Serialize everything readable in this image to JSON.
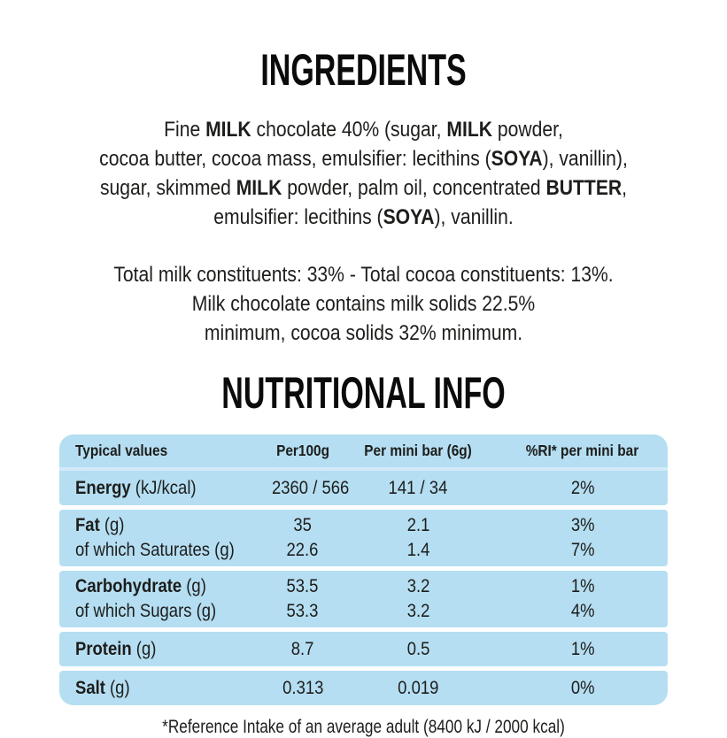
{
  "colors": {
    "table_blue": "#b5def2",
    "text": "#1d1d1b",
    "background": "#ffffff"
  },
  "ingredients": {
    "title": "INGREDIENTS",
    "paragraph1": [
      [
        {
          "text": "Fine "
        },
        {
          "text": "MILK",
          "bold": true
        },
        {
          "text": " chocolate 40% (sugar, "
        },
        {
          "text": "MILK",
          "bold": true
        },
        {
          "text": " powder,"
        }
      ],
      [
        {
          "text": "cocoa butter, cocoa mass, emulsifier: lecithins ("
        },
        {
          "text": "SOYA",
          "bold": true
        },
        {
          "text": "), vanillin),"
        }
      ],
      [
        {
          "text": "sugar, skimmed "
        },
        {
          "text": "MILK",
          "bold": true
        },
        {
          "text": " powder, palm oil, concentrated "
        },
        {
          "text": "BUTTER",
          "bold": true
        },
        {
          "text": ","
        }
      ],
      [
        {
          "text": "emulsifier: lecithins ("
        },
        {
          "text": "SOYA",
          "bold": true
        },
        {
          "text": "), vanillin."
        }
      ]
    ],
    "paragraph2": [
      "Total milk constituents: 33% - Total cocoa constituents: 13%.",
      "Milk chocolate contains milk solids 22.5%",
      "minimum, cocoa solids 32% minimum."
    ]
  },
  "nutrition": {
    "title": "NUTRITIONAL INFO",
    "table": {
      "headers": [
        "Typical values",
        "Per100g",
        "Per mini bar (6g)",
        "%RI* per mini bar"
      ],
      "groups": [
        {
          "rows": [
            {
              "bold": "Energy",
              "rest": " (kJ/kcal)",
              "per100g": "2360 / 566",
              "per_mini_bar": "141 / 34",
              "ri_per_mini_bar": "2%"
            }
          ]
        },
        {
          "rows": [
            {
              "bold": "Fat",
              "rest": " (g)",
              "per100g": "35",
              "per_mini_bar": "2.1",
              "ri_per_mini_bar": "3%"
            },
            {
              "bold": "",
              "rest": "of which Saturates (g)",
              "per100g": "22.6",
              "per_mini_bar": "1.4",
              "ri_per_mini_bar": "7%"
            }
          ]
        },
        {
          "rows": [
            {
              "bold": "Carbohydrate",
              "rest": " (g)",
              "per100g": "53.5",
              "per_mini_bar": "3.2",
              "ri_per_mini_bar": "1%"
            },
            {
              "bold": "",
              "rest": "of which Sugars (g)",
              "per100g": "53.3",
              "per_mini_bar": "3.2",
              "ri_per_mini_bar": "4%"
            }
          ]
        },
        {
          "rows": [
            {
              "bold": "Protein",
              "rest": " (g)",
              "per100g": "8.7",
              "per_mini_bar": "0.5",
              "ri_per_mini_bar": "1%"
            }
          ]
        },
        {
          "rows": [
            {
              "bold": "Salt",
              "rest": " (g)",
              "per100g": "0.313",
              "per_mini_bar": "0.019",
              "ri_per_mini_bar": "0%"
            }
          ]
        }
      ]
    },
    "footnote": "*Reference Intake of an average adult (8400 kJ / 2000 kcal)"
  }
}
